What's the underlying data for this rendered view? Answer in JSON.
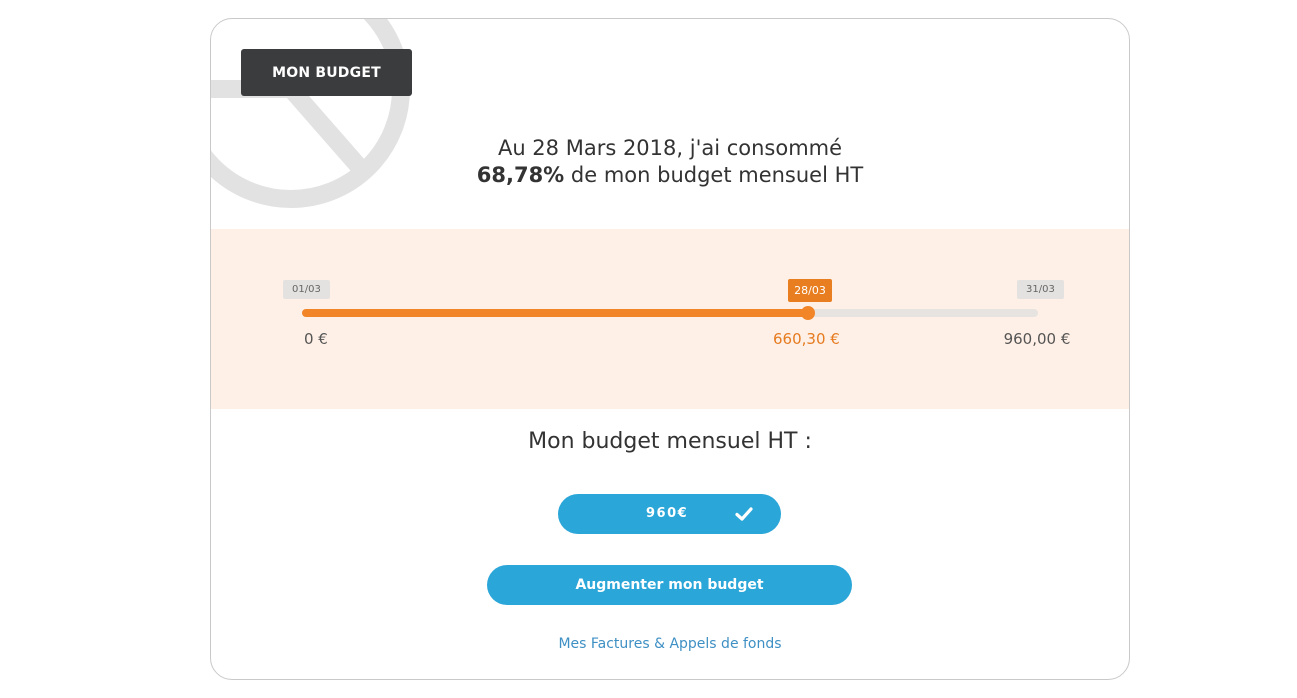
{
  "card": {
    "title": "MON BUDGET"
  },
  "summary": {
    "line1": "Au 28 Mars 2018, j'ai consommé",
    "percent": "68,78%",
    "line2_rest": " de mon budget mensuel HT"
  },
  "progress": {
    "start_date": "01/03",
    "current_date": "28/03",
    "end_date": "31/03",
    "start_amount": "0 €",
    "current_amount": "660,30 €",
    "end_amount": "960,00 €",
    "consumed_fraction": 0.6878
  },
  "budget": {
    "label": "Mon budget mensuel HT :",
    "value": "960€",
    "confirm_icon": "check-icon"
  },
  "actions": {
    "increase_label": "Augmenter mon budget",
    "invoices_link": "Mes Factures & Appels de fonds"
  },
  "colors": {
    "accent_orange": "#f28528",
    "accent_blue": "#2ba6d8",
    "band_bg": "#fef0e6",
    "title_badge_bg": "#3a3c3e"
  }
}
